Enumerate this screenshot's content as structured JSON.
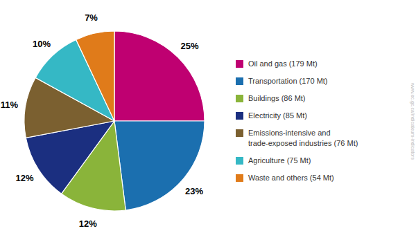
{
  "chart_data": {
    "type": "pie",
    "categories": [
      "Oil and gas (179 Mt)",
      "Transportation (170 Mt)",
      "Buildings (86 Mt)",
      "Electricity (85 Mt)",
      "Emissions-intensive and\ntrade-exposed industries (76 Mt)",
      "Agriculture (75 Mt)",
      "Waste and others (54 Mt)"
    ],
    "values": [
      25,
      23,
      12,
      12,
      11,
      10,
      7
    ],
    "value_labels": [
      "25%",
      "23%",
      "12%",
      "12%",
      "11%",
      "10%",
      "7%"
    ],
    "colors": [
      "#BF0071",
      "#1B6FAF",
      "#8AB43A",
      "#1B2F80",
      "#7B6030",
      "#35B8C5",
      "#E07B1A"
    ],
    "data_labels": true,
    "legend": "right",
    "annotations": [
      "www.ec.gc.ca/indicateurs-indicators"
    ]
  }
}
